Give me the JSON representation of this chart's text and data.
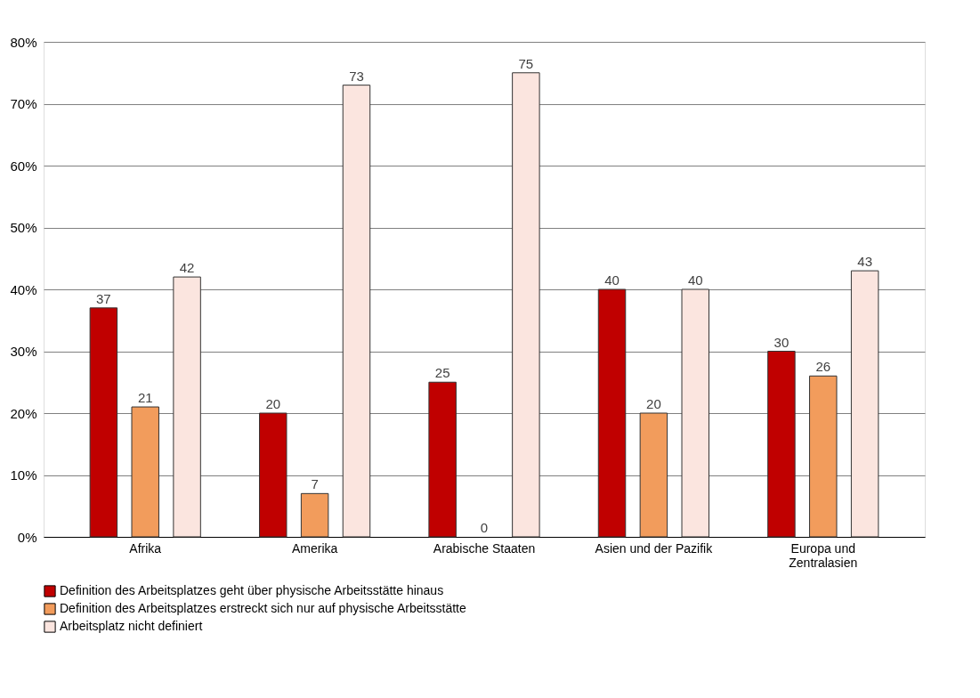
{
  "chart_data": {
    "type": "bar",
    "categories": [
      "Afrika",
      "Amerika",
      "Arabische Staaten",
      "Asien und der Pazifik",
      "Europa und Zentralasien"
    ],
    "series": [
      {
        "name": "Definition des Arbeitsplatzes geht über physische Arbeitsstätte hinaus",
        "color": "#c00000",
        "values": [
          37,
          20,
          25,
          40,
          30
        ]
      },
      {
        "name": "Definition des Arbeitsplatzes erstreckt sich nur auf physische Arbeitsstätte",
        "color": "#f29c5c",
        "values": [
          21,
          7,
          0,
          20,
          26
        ]
      },
      {
        "name": "Arbeitsplatz nicht definiert",
        "color": "#fbe5df",
        "values": [
          42,
          73,
          75,
          40,
          43
        ]
      }
    ],
    "ylim": [
      0,
      80
    ],
    "yticks": [
      {
        "value": 0,
        "label": "0%"
      },
      {
        "value": 10,
        "label": "10%"
      },
      {
        "value": 20,
        "label": "20%"
      },
      {
        "value": 30,
        "label": "30%"
      },
      {
        "value": 40,
        "label": "40%"
      },
      {
        "value": 50,
        "label": "50%"
      },
      {
        "value": 60,
        "label": "60%"
      },
      {
        "value": 70,
        "label": "70%"
      },
      {
        "value": 80,
        "label": "80%"
      }
    ],
    "grid": "y",
    "legend": "bottom",
    "data_labels": true
  }
}
